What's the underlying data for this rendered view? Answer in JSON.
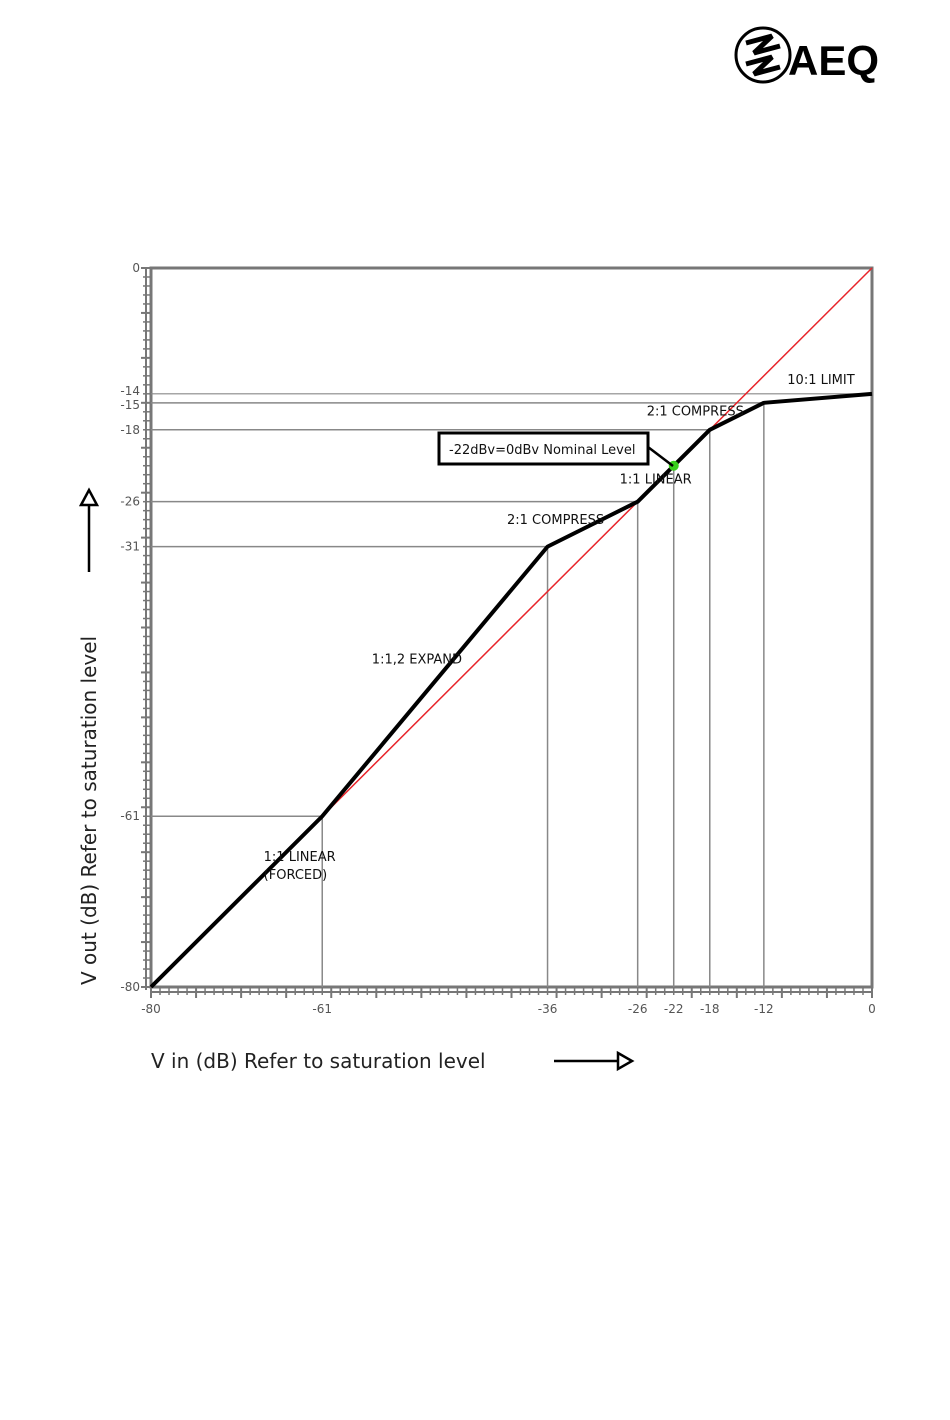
{
  "brand": {
    "name": "AEQ"
  },
  "chart_data": {
    "type": "line",
    "xlabel": "V in (dB) Refer to saturation level",
    "ylabel": "V out (dB) Refer to saturation level",
    "xlim": [
      -80,
      0
    ],
    "ylim": [
      -80,
      0
    ],
    "x_tick_labels": [
      -80,
      -61,
      -36,
      -26,
      -22,
      -18,
      -12,
      0
    ],
    "y_tick_labels": [
      0,
      -14,
      -15,
      -18,
      -26,
      -31,
      -61,
      -80
    ],
    "grid": false,
    "series": [
      {
        "points": [
          [
            -80,
            -80
          ],
          [
            -61,
            -61
          ],
          [
            -36,
            -31
          ],
          [
            -26,
            -26
          ],
          [
            -18,
            -18
          ],
          [
            -12,
            -15
          ],
          [
            0,
            -14
          ]
        ],
        "color": "#000000"
      },
      {
        "points": [
          [
            -80,
            -80
          ],
          [
            0,
            0
          ]
        ],
        "color": "#e8242a"
      }
    ],
    "marker": {
      "x": -22,
      "y": -22,
      "color": "#39d01c"
    },
    "segment_labels": [
      {
        "text": "1:1 LINEAR",
        "x": -67.5,
        "y": -66
      },
      {
        "text": "(FORCED)",
        "x": -67.5,
        "y": -68
      },
      {
        "text": "1:1,2 EXPAND",
        "x": -55.5,
        "y": -44
      },
      {
        "text": "2:1 COMPRESS",
        "x": -40.5,
        "y": -28.5
      },
      {
        "text": "1:1 LINEAR",
        "x": -28,
        "y": -24
      },
      {
        "text": "2:1 COMPRESS",
        "x": -25,
        "y": -16.4
      },
      {
        "text": "10:1 LIMIT",
        "x": -9.4,
        "y": -12.9
      }
    ],
    "annotation": {
      "text": "-22dBv=0dBv Nominal Level",
      "x": -22,
      "y": -22
    }
  }
}
